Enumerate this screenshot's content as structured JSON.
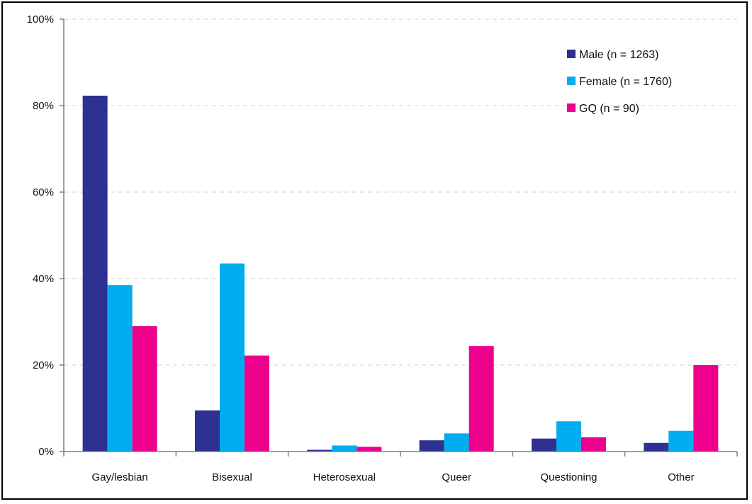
{
  "chart_data": {
    "type": "bar",
    "categories": [
      "Gay/lesbian",
      "Bisexual",
      "Heterosexual",
      "Queer",
      "Questioning",
      "Other"
    ],
    "series": [
      {
        "name": "Male (n = 1263)",
        "color": "#2E3192",
        "values": [
          82.3,
          9.5,
          0.4,
          2.6,
          3.0,
          2.0
        ]
      },
      {
        "name": "Female (n = 1760)",
        "color": "#00AEEF",
        "values": [
          38.5,
          43.5,
          1.4,
          4.2,
          7.0,
          4.8
        ]
      },
      {
        "name": "GQ (n = 90)",
        "color": "#EC008C",
        "values": [
          29.0,
          22.2,
          1.1,
          24.4,
          3.3,
          20.0
        ]
      }
    ],
    "ylim": [
      0,
      100
    ],
    "yticks": [
      "0%",
      "20%",
      "40%",
      "60%",
      "80%",
      "100%"
    ],
    "ytick_values": [
      0,
      20,
      40,
      60,
      80,
      100
    ],
    "grid": "horizontal-dashed",
    "legend_position": "top-right"
  }
}
